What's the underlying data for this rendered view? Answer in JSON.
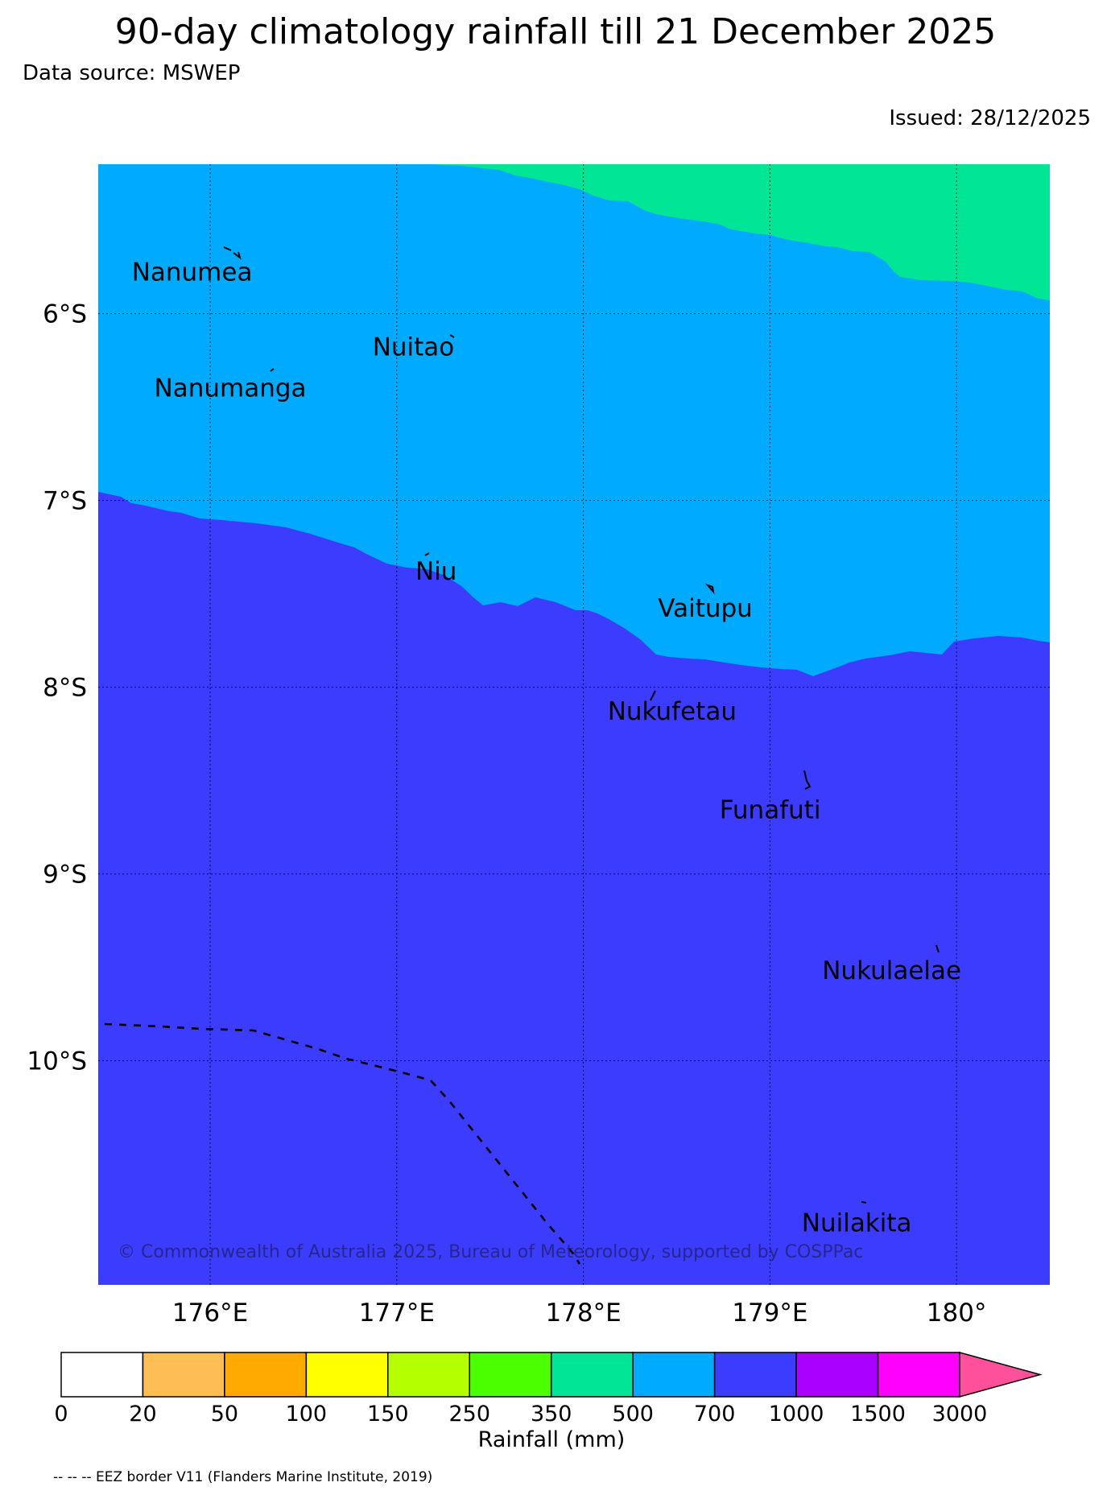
{
  "title": "90-day climatology rainfall till 21 December 2025",
  "data_source": "Data source: MSWEP",
  "issued": "Issued: 28/12/2025",
  "copyright": "© Commonwealth of Australia 2025, Bureau of Meteorology, supported by COSPPac",
  "eez_note": "-- -- -- EEZ border V11 (Flanders Marine Institute, 2019)",
  "map": {
    "lon_range": [
      175.4,
      180.5
    ],
    "lat_range": [
      -5.2,
      -11.2
    ],
    "lon_ticks": [
      {
        "value": 176,
        "label": "176°E"
      },
      {
        "value": 177,
        "label": "177°E"
      },
      {
        "value": 178,
        "label": "178°E"
      },
      {
        "value": 179,
        "label": "179°E"
      },
      {
        "value": 180,
        "label": "180°"
      }
    ],
    "lat_ticks": [
      {
        "value": -6,
        "label": "6°S"
      },
      {
        "value": -7,
        "label": "7°S"
      },
      {
        "value": -8,
        "label": "8°S"
      },
      {
        "value": -9,
        "label": "9°S"
      },
      {
        "value": -10,
        "label": "10°S"
      }
    ],
    "places": [
      {
        "name": "Nanumea",
        "lon": 176.13,
        "lat": -5.68
      },
      {
        "name": "Nuitao",
        "lon": 177.35,
        "lat": -6.12
      },
      {
        "name": "Nanumanga",
        "lon": 176.33,
        "lat": -6.3
      },
      {
        "name": "Niu",
        "lon": 177.17,
        "lat": -7.28
      },
      {
        "name": "Vaitupu",
        "lon": 178.68,
        "lat": -7.48
      },
      {
        "name": "Nukufetau",
        "lon": 178.4,
        "lat": -8.03
      },
      {
        "name": "Funafuti",
        "lon": 179.2,
        "lat": -8.52
      },
      {
        "name": "Nukulaelae",
        "lon": 179.85,
        "lat": -9.38
      },
      {
        "name": "Nuilakita",
        "lon": 179.52,
        "lat": -10.77
      }
    ],
    "zones": [
      {
        "class": "350-500 mm",
        "color": "#00e696"
      },
      {
        "class": "500-700 mm",
        "color": "#00aaff"
      },
      {
        "class": "700-1000 mm",
        "color": "#3c3cff"
      }
    ]
  },
  "colorbar": {
    "label": "Rainfall (mm)",
    "ticks": [
      "0",
      "20",
      "50",
      "100",
      "150",
      "250",
      "350",
      "500",
      "700",
      "1000",
      "1500",
      "3000"
    ],
    "colors": [
      "#ffffff",
      "#ffbe55",
      "#ffaa00",
      "#ffff00",
      "#b4ff00",
      "#4cff00",
      "#00e696",
      "#00aaff",
      "#3c3cff",
      "#aa00ff",
      "#ff00ff"
    ],
    "extend_color": "#ff509b"
  }
}
